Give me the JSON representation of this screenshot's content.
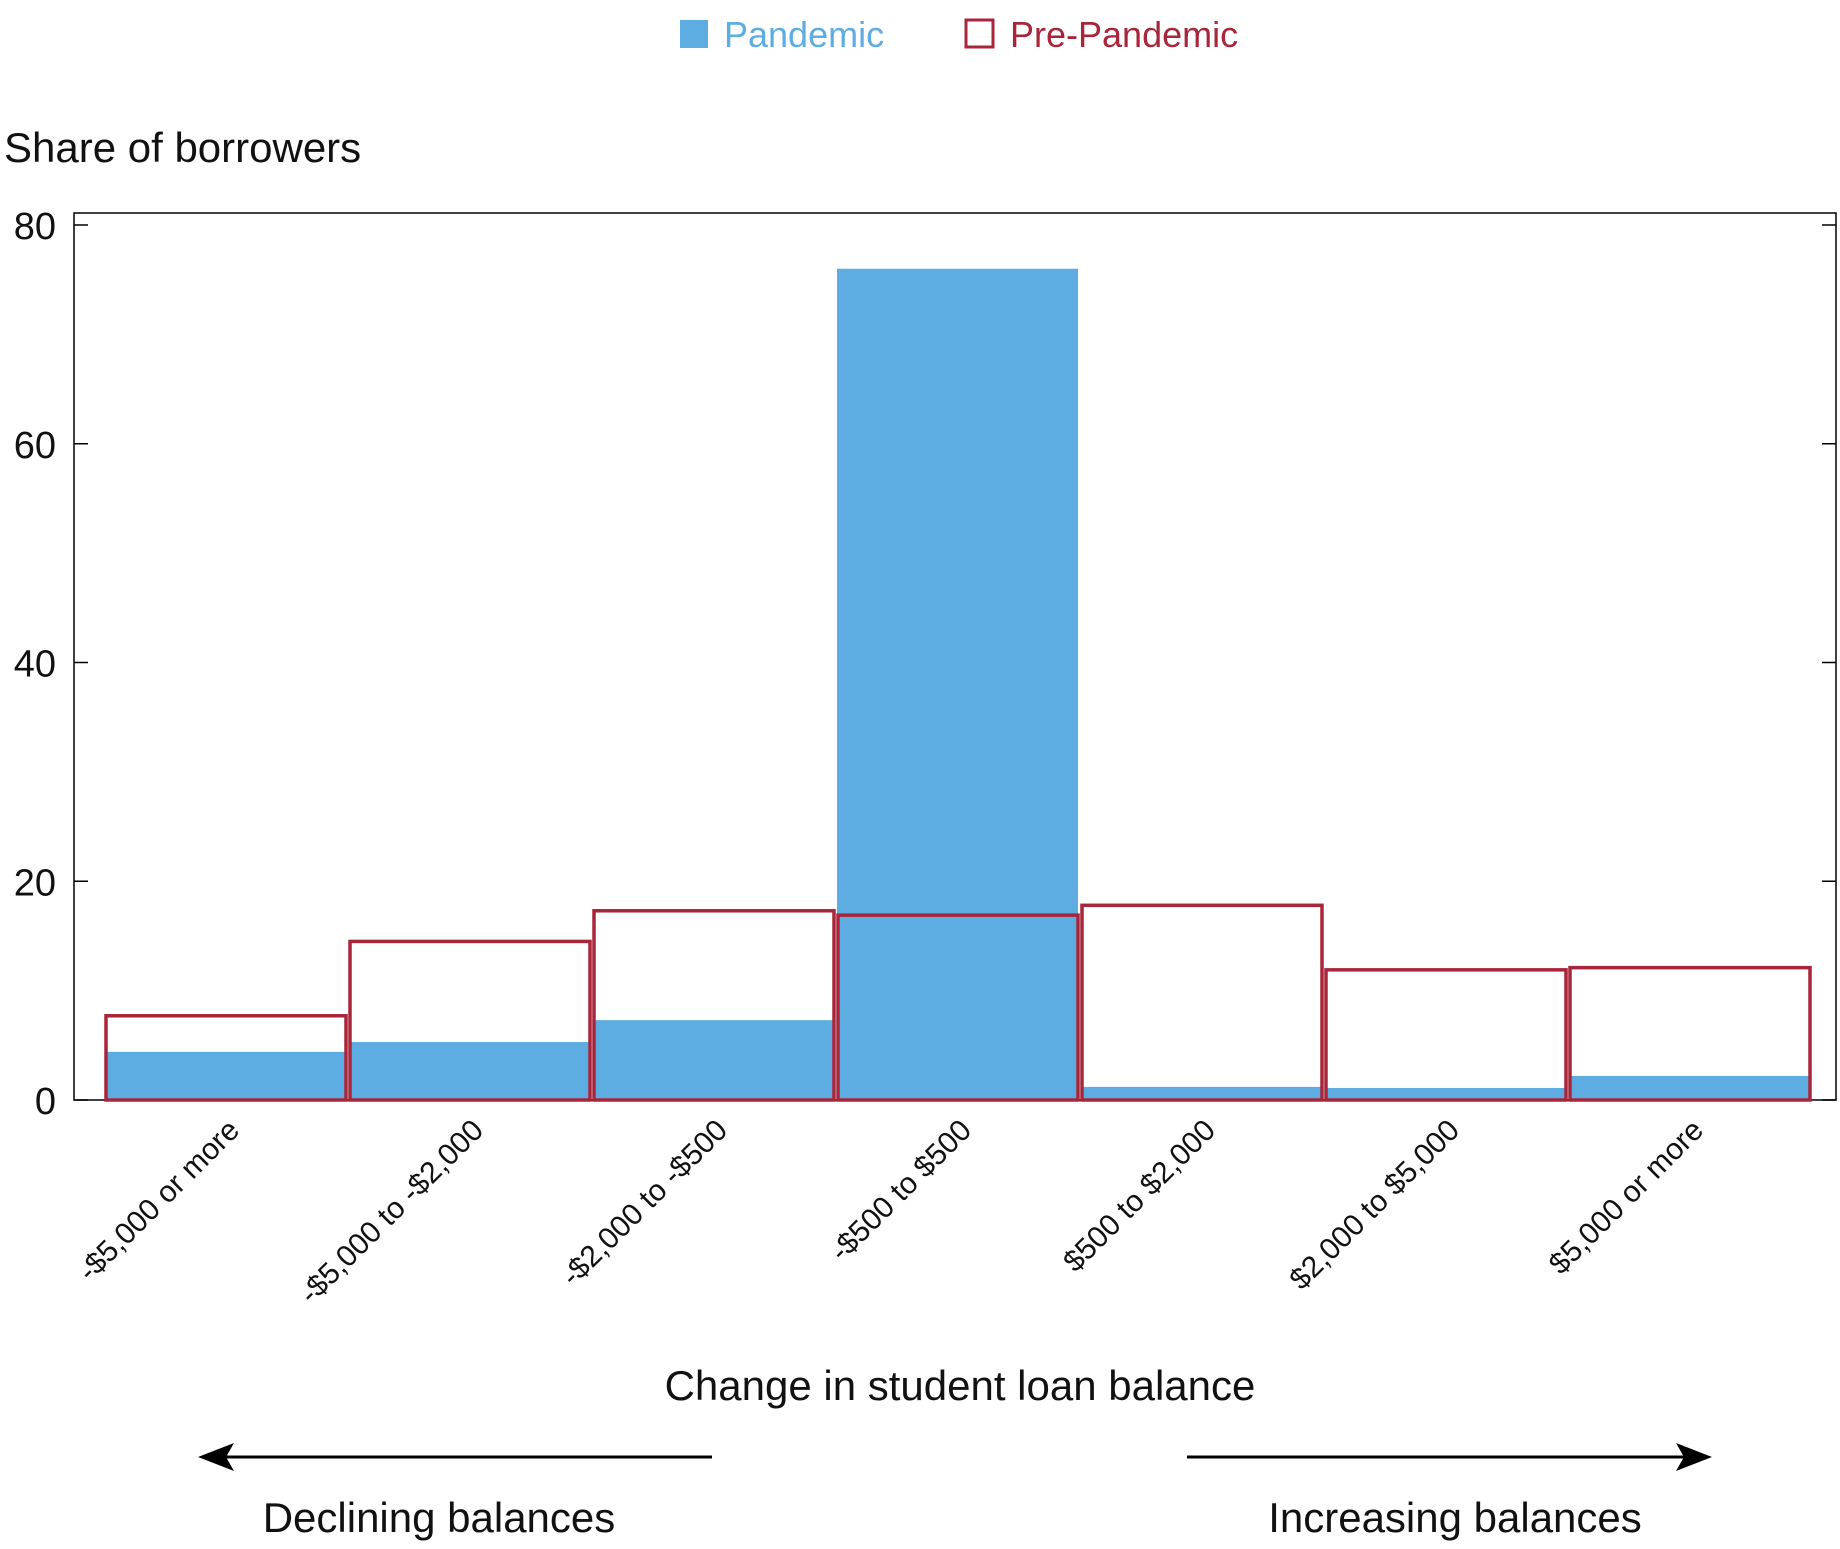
{
  "chart_data": {
    "type": "bar",
    "categories": [
      "-$5,000 or more",
      "-$5,000 to -$2,000",
      "-$2,000 to -$500",
      "-$500 to $500",
      "$500 to $2,000",
      "$2,000 to $5,000",
      "$5,000 or more"
    ],
    "series": [
      {
        "name": "Pandemic",
        "color": "#5dade2",
        "style": "filled",
        "values": [
          4.4,
          5.3,
          7.3,
          76.0,
          1.2,
          1.1,
          2.2
        ]
      },
      {
        "name": "Pre-Pandemic",
        "color": "#a8263b",
        "style": "outline",
        "values": [
          7.7,
          14.5,
          17.3,
          16.9,
          17.8,
          11.9,
          12.1
        ]
      }
    ],
    "ylabel": "Share of borrowers",
    "xlabel": "Change in student loan balance",
    "ylim": [
      0,
      80
    ],
    "yticks": [
      0,
      20,
      40,
      60,
      80
    ],
    "legend": "top-center",
    "grid": false,
    "annotations": {
      "left_arrow": "Declining balances",
      "right_arrow": "Increasing balances"
    }
  }
}
